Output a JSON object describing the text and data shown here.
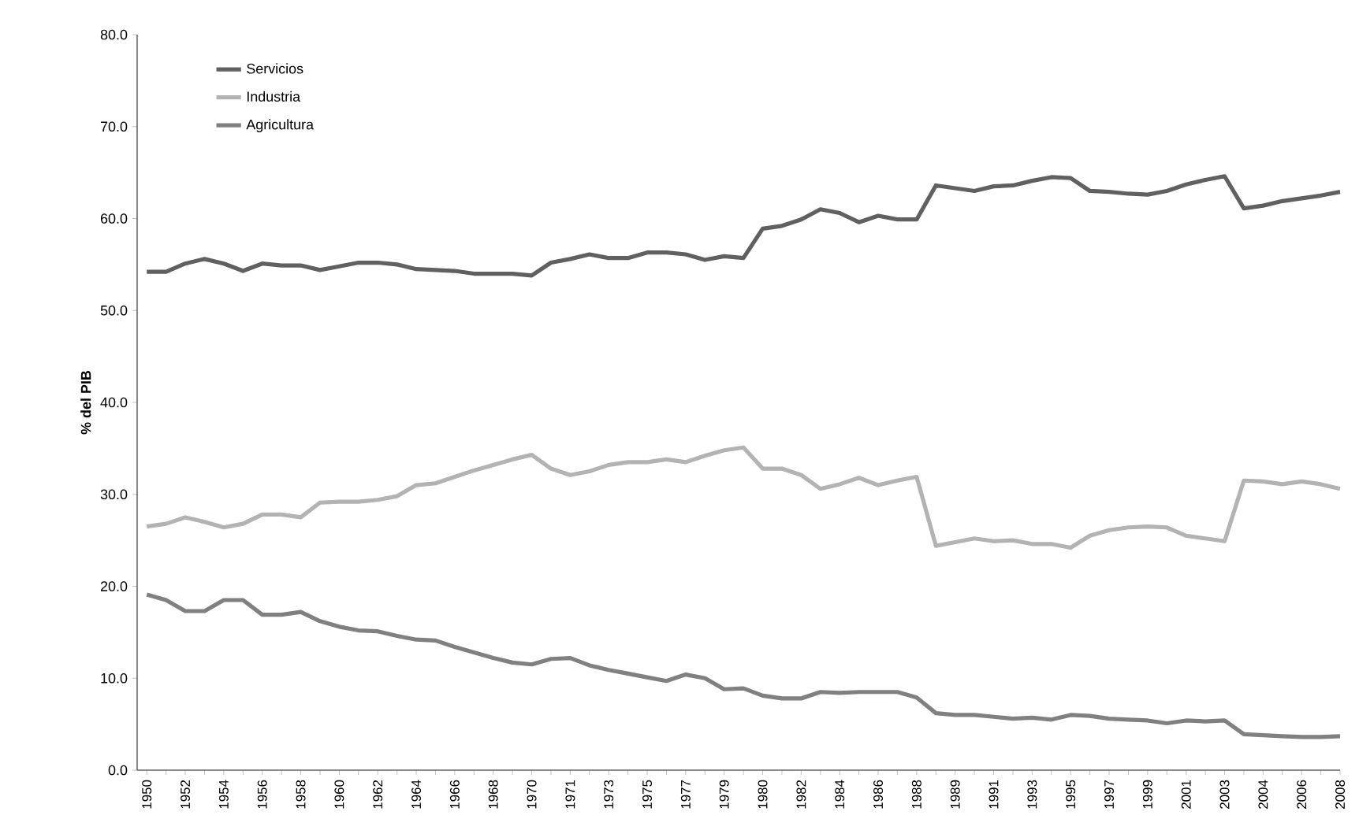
{
  "chart_data": {
    "type": "line",
    "ylabel": "**% del PIB**",
    "categories": [
      "1950",
      null,
      "1952",
      null,
      "1954",
      null,
      "1956",
      null,
      "1958",
      null,
      "1960",
      null,
      "1962",
      null,
      "1964",
      null,
      "1966",
      null,
      "1968",
      null,
      "1970",
      null,
      "1971",
      null,
      "1973",
      null,
      "1975",
      null,
      "1977",
      null,
      "1979",
      null,
      "1980",
      null,
      "1982",
      null,
      "1984",
      null,
      "1986",
      null,
      "1988",
      null,
      "1989",
      null,
      "1991",
      null,
      "1993",
      null,
      "1995",
      null,
      "1997",
      null,
      "1999",
      null,
      "2001",
      null,
      "2003",
      null,
      "2004",
      null,
      "2006",
      null,
      "2008"
    ],
    "series": [
      {
        "name": "Servicios",
        "color": "#606060",
        "values": [
          54.2,
          54.2,
          55.1,
          55.6,
          55.1,
          54.3,
          55.1,
          54.9,
          54.9,
          54.4,
          54.8,
          55.2,
          55.2,
          55.0,
          54.5,
          54.4,
          54.3,
          54.0,
          54.0,
          54.0,
          53.8,
          55.2,
          55.6,
          56.1,
          55.7,
          55.7,
          56.3,
          56.3,
          56.1,
          55.5,
          55.9,
          55.7,
          58.9,
          59.2,
          59.9,
          61.0,
          60.6,
          59.6,
          60.3,
          59.9,
          59.9,
          63.6,
          63.3,
          63.0,
          63.5,
          63.6,
          64.1,
          64.5,
          64.4,
          63.0,
          62.9,
          62.7,
          62.6,
          63.0,
          63.7,
          64.2,
          64.6,
          61.1,
          61.4,
          61.9,
          62.2,
          62.5,
          62.9
        ]
      },
      {
        "name": "Industria",
        "color": "#b3b3b3",
        "values": [
          26.5,
          26.8,
          27.5,
          27.0,
          26.4,
          26.8,
          27.8,
          27.8,
          27.5,
          29.1,
          29.2,
          29.2,
          29.4,
          29.8,
          31.0,
          31.2,
          31.9,
          32.6,
          33.2,
          33.8,
          34.3,
          32.8,
          32.1,
          32.5,
          33.2,
          33.5,
          33.5,
          33.8,
          33.5,
          34.2,
          34.8,
          35.1,
          32.8,
          32.8,
          32.1,
          30.6,
          31.1,
          31.8,
          31.0,
          31.5,
          31.9,
          24.4,
          24.8,
          25.2,
          24.9,
          25.0,
          24.6,
          24.6,
          24.2,
          25.5,
          26.1,
          26.4,
          26.5,
          26.4,
          25.5,
          25.2,
          24.9,
          31.5,
          31.4,
          31.1,
          31.4,
          31.1,
          30.6
        ]
      },
      {
        "name": "Agricultura",
        "color": "#808080",
        "values": [
          19.1,
          18.5,
          17.3,
          17.3,
          18.5,
          18.5,
          16.9,
          16.9,
          17.2,
          16.2,
          15.6,
          15.2,
          15.1,
          14.6,
          14.2,
          14.1,
          13.4,
          12.8,
          12.2,
          11.7,
          11.5,
          12.1,
          12.2,
          11.4,
          10.9,
          10.5,
          10.1,
          9.7,
          10.4,
          10.0,
          8.8,
          8.9,
          8.1,
          7.8,
          7.8,
          8.5,
          8.4,
          8.5,
          8.5,
          8.5,
          7.9,
          6.2,
          6.0,
          6.0,
          5.8,
          5.6,
          5.7,
          5.5,
          6.0,
          5.9,
          5.6,
          5.5,
          5.4,
          5.1,
          5.4,
          5.3,
          5.4,
          3.9,
          3.8,
          3.7,
          3.6,
          3.6,
          3.7
        ]
      }
    ],
    "ylim": [
      0,
      80
    ],
    "yticks": [
      {
        "value": 0,
        "label": "0.0"
      },
      {
        "value": 10,
        "label": "10.0"
      },
      {
        "value": 20,
        "label": "20.0"
      },
      {
        "value": 30,
        "label": "30.0"
      },
      {
        "value": 40,
        "label": "40.0"
      },
      {
        "value": 50,
        "label": "50.0"
      },
      {
        "value": 60,
        "label": "60.0"
      },
      {
        "value": 70,
        "label": "70.0"
      },
      {
        "value": 80,
        "label": "80.0"
      }
    ],
    "legend": "top left"
  }
}
